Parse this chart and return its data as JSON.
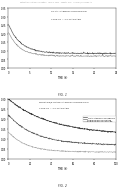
{
  "header_text": "Patent Application Publication    Nov. 8, 2012   Sheet 1 of 8    US 2012/0283484 A1",
  "fig1_title": "TOTAL CARBON CONVERSION",
  "fig1_subtitle": "C2H6:H2 = 4.5 STANDARD",
  "fig1_xlabel": "TIME (h)",
  "fig1_xlim": [
    0,
    25
  ],
  "fig1_ylim": [
    0.0,
    0.35
  ],
  "fig1_yticks": [
    0.0,
    0.05,
    0.1,
    0.15,
    0.2,
    0.25,
    0.3,
    0.35
  ],
  "fig1_xticks": [
    0,
    5,
    10,
    15,
    20,
    25
  ],
  "fig1_label": "FIG. 1",
  "fig2_title": "PROPANE/ETHANE CARBON CONVERSION",
  "fig2_subtitle": "C2H6:H2 = 4.5 STANDARD",
  "fig2_xlabel": "TIME (h)",
  "fig2_xlim": [
    0,
    100
  ],
  "fig2_ylim": [
    0.0,
    0.3
  ],
  "fig2_yticks": [
    0.0,
    0.05,
    0.1,
    0.15,
    0.2,
    0.25,
    0.3
  ],
  "fig2_xticks": [
    0,
    20,
    40,
    60,
    80,
    100
  ],
  "fig2_label": "FIG. 2",
  "fig2_legend": [
    "CONVERSION OF ETHANE",
    "TOTAL CARBON CONVERSION",
    "CONVERSION OF PROPANE"
  ],
  "background_color": "#ffffff"
}
